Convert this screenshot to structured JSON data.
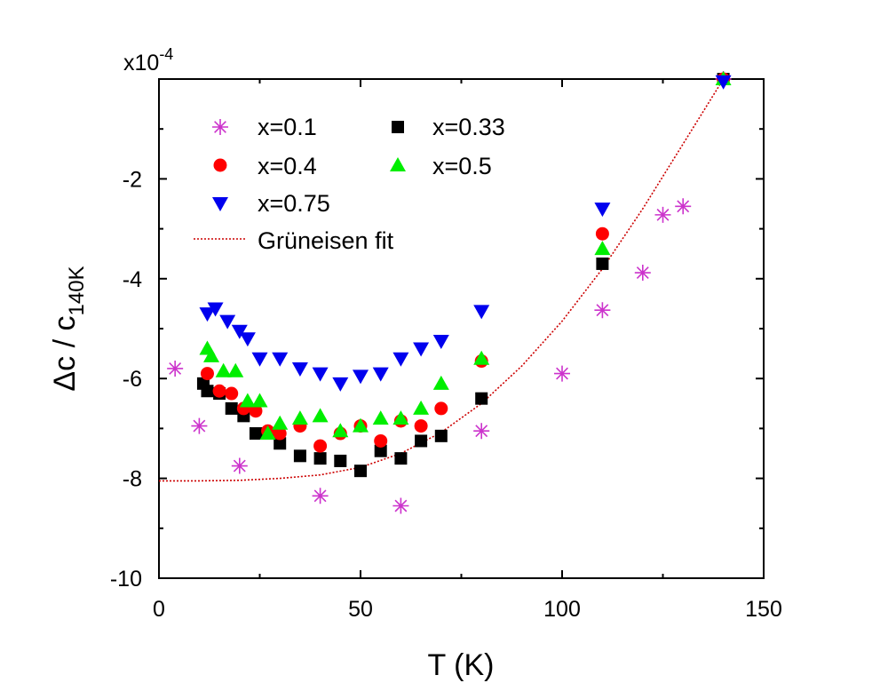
{
  "chart_data": {
    "type": "scatter",
    "title": "",
    "xlabel": "T (K)",
    "ylabel_main": "Δc / c",
    "ylabel_sub": "140K",
    "y_multiplier_base": "x10",
    "y_multiplier_exp": "-4",
    "xlim": [
      0,
      150
    ],
    "ylim": [
      -10,
      0
    ],
    "x_ticks": [
      0,
      50,
      100,
      150
    ],
    "x_tick_labels": [
      "0",
      "50",
      "100",
      "150"
    ],
    "y_ticks": [
      -10,
      -8,
      -6,
      -4,
      -2
    ],
    "y_tick_labels": [
      "-10",
      "-8",
      "-6",
      "-4",
      "-2"
    ],
    "grid": false,
    "legend_position": "top-left",
    "series": [
      {
        "name": "x=0.1",
        "marker": "asterisk",
        "color": "#cc33cc",
        "points": [
          [
            4,
            -5.8
          ],
          [
            10,
            -6.95
          ],
          [
            20,
            -7.75
          ],
          [
            40,
            -8.35
          ],
          [
            60,
            -8.55
          ],
          [
            80,
            -7.05
          ],
          [
            100,
            -5.9
          ],
          [
            110,
            -4.63
          ],
          [
            120,
            -3.88
          ],
          [
            125,
            -2.72
          ],
          [
            130,
            -2.55
          ],
          [
            140,
            0.0
          ]
        ]
      },
      {
        "name": "x=0.33",
        "marker": "square",
        "color": "#000000",
        "points": [
          [
            11,
            -6.1
          ],
          [
            12,
            -6.25
          ],
          [
            15,
            -6.3
          ],
          [
            18,
            -6.6
          ],
          [
            21,
            -6.75
          ],
          [
            24,
            -7.1
          ],
          [
            27,
            -7.1
          ],
          [
            30,
            -7.3
          ],
          [
            35,
            -7.55
          ],
          [
            40,
            -7.6
          ],
          [
            45,
            -7.65
          ],
          [
            50,
            -7.85
          ],
          [
            55,
            -7.45
          ],
          [
            60,
            -7.6
          ],
          [
            65,
            -7.25
          ],
          [
            70,
            -7.15
          ],
          [
            80,
            -6.4
          ],
          [
            110,
            -3.7
          ],
          [
            140,
            0.0
          ]
        ]
      },
      {
        "name": "x=0.4",
        "marker": "circle",
        "color": "#ff0000",
        "points": [
          [
            12,
            -5.9
          ],
          [
            15,
            -6.25
          ],
          [
            18,
            -6.3
          ],
          [
            21,
            -6.6
          ],
          [
            24,
            -6.65
          ],
          [
            27,
            -7.05
          ],
          [
            30,
            -7.1
          ],
          [
            35,
            -6.95
          ],
          [
            40,
            -7.35
          ],
          [
            45,
            -7.1
          ],
          [
            50,
            -6.95
          ],
          [
            55,
            -7.25
          ],
          [
            60,
            -6.85
          ],
          [
            65,
            -6.95
          ],
          [
            70,
            -6.6
          ],
          [
            80,
            -5.65
          ],
          [
            110,
            -3.1
          ],
          [
            140,
            0.0
          ]
        ]
      },
      {
        "name": "x=0.5",
        "marker": "triangle-up",
        "color": "#00ee00",
        "points": [
          [
            12,
            -5.4
          ],
          [
            13,
            -5.55
          ],
          [
            16,
            -5.85
          ],
          [
            19,
            -5.85
          ],
          [
            22,
            -6.45
          ],
          [
            25,
            -6.45
          ],
          [
            27,
            -7.1
          ],
          [
            30,
            -6.9
          ],
          [
            35,
            -6.8
          ],
          [
            40,
            -6.75
          ],
          [
            45,
            -7.05
          ],
          [
            50,
            -6.95
          ],
          [
            55,
            -6.8
          ],
          [
            60,
            -6.8
          ],
          [
            65,
            -6.6
          ],
          [
            70,
            -6.1
          ],
          [
            80,
            -5.6
          ],
          [
            110,
            -3.4
          ],
          [
            140,
            0.0
          ]
        ]
      },
      {
        "name": "x=0.75",
        "marker": "triangle-down",
        "color": "#0000ee",
        "points": [
          [
            12,
            -4.7
          ],
          [
            14,
            -4.6
          ],
          [
            17,
            -4.85
          ],
          [
            20,
            -5.05
          ],
          [
            22,
            -5.2
          ],
          [
            25,
            -5.6
          ],
          [
            30,
            -5.6
          ],
          [
            35,
            -5.8
          ],
          [
            40,
            -5.9
          ],
          [
            45,
            -6.1
          ],
          [
            50,
            -5.95
          ],
          [
            55,
            -5.9
          ],
          [
            60,
            -5.6
          ],
          [
            65,
            -5.4
          ],
          [
            70,
            -5.25
          ],
          [
            80,
            -4.65
          ],
          [
            110,
            -2.6
          ],
          [
            140,
            -0.05
          ]
        ]
      }
    ],
    "fit": {
      "name": "Grüneisen fit",
      "color": "#cc0000",
      "style": "dotted",
      "points": [
        [
          0,
          -8.05
        ],
        [
          10,
          -8.05
        ],
        [
          20,
          -8.04
        ],
        [
          30,
          -8.0
        ],
        [
          40,
          -7.93
        ],
        [
          50,
          -7.78
        ],
        [
          60,
          -7.5
        ],
        [
          70,
          -7.08
        ],
        [
          80,
          -6.5
        ],
        [
          90,
          -5.75
        ],
        [
          100,
          -4.85
        ],
        [
          110,
          -3.8
        ],
        [
          120,
          -2.6
        ],
        [
          130,
          -1.3
        ],
        [
          140,
          0.0
        ]
      ]
    }
  }
}
